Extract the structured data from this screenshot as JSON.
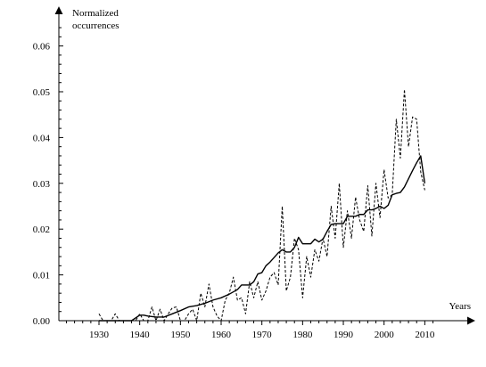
{
  "chart_data": {
    "type": "line",
    "ylabel": "Normalized\noccurrences",
    "ylabel_lines": [
      "Normalized",
      "occurrences"
    ],
    "xlabel": "Years",
    "xlim": [
      1920,
      2015
    ],
    "ylim": [
      0,
      0.065
    ],
    "x_ticks": [
      1930,
      1940,
      1950,
      1960,
      1970,
      1980,
      1990,
      2000,
      2010
    ],
    "y_ticks": [
      0.0,
      0.01,
      0.02,
      0.03,
      0.04,
      0.05,
      0.06
    ],
    "y_tick_labels": [
      "0.00",
      "0.01",
      "0.02",
      "0.03",
      "0.04",
      "0.05",
      "0.06"
    ],
    "grid": false,
    "series": [
      {
        "style": "solid",
        "color": "#000000",
        "x": [
          1930,
          1932,
          1934,
          1936,
          1938,
          1940,
          1941,
          1942,
          1944,
          1946,
          1948,
          1950,
          1952,
          1954,
          1956,
          1958,
          1960,
          1962,
          1964,
          1965,
          1966,
          1967,
          1968,
          1969,
          1970,
          1971,
          1972,
          1973,
          1974,
          1975,
          1976,
          1977,
          1978,
          1979,
          1980,
          1981,
          1982,
          1983,
          1984,
          1985,
          1986,
          1987,
          1988,
          1989,
          1990,
          1991,
          1992,
          1993,
          1994,
          1995,
          1996,
          1997,
          1998,
          1999,
          2000,
          2001,
          2002,
          2003,
          2004,
          2005,
          2006,
          2007,
          2008,
          2009,
          2010
        ],
        "y": [
          0.0,
          0.0,
          0.0,
          0.0,
          0.0,
          0.0012,
          0.0012,
          0.001,
          0.0008,
          0.0008,
          0.0015,
          0.0022,
          0.003,
          0.0033,
          0.0038,
          0.0045,
          0.005,
          0.0058,
          0.0068,
          0.0078,
          0.0078,
          0.0078,
          0.0085,
          0.0102,
          0.0105,
          0.012,
          0.0128,
          0.0138,
          0.0148,
          0.0155,
          0.015,
          0.015,
          0.016,
          0.0182,
          0.0168,
          0.0168,
          0.0168,
          0.0178,
          0.0172,
          0.0178,
          0.0195,
          0.021,
          0.0212,
          0.0212,
          0.0212,
          0.0228,
          0.0228,
          0.0228,
          0.0232,
          0.0232,
          0.0242,
          0.0242,
          0.0245,
          0.025,
          0.0245,
          0.0252,
          0.0275,
          0.0278,
          0.028,
          0.0292,
          0.031,
          0.0328,
          0.0345,
          0.036,
          0.03
        ]
      },
      {
        "style": "dashed",
        "color": "#000000",
        "x": [
          1930,
          1931,
          1932,
          1933,
          1934,
          1935,
          1936,
          1937,
          1938,
          1939,
          1940,
          1941,
          1942,
          1943,
          1944,
          1945,
          1946,
          1947,
          1948,
          1949,
          1950,
          1951,
          1952,
          1953,
          1954,
          1955,
          1956,
          1957,
          1958,
          1959,
          1960,
          1961,
          1962,
          1963,
          1964,
          1965,
          1966,
          1967,
          1968,
          1969,
          1970,
          1971,
          1972,
          1973,
          1974,
          1975,
          1976,
          1977,
          1978,
          1979,
          1980,
          1981,
          1982,
          1983,
          1984,
          1985,
          1986,
          1987,
          1988,
          1989,
          1990,
          1991,
          1992,
          1993,
          1994,
          1995,
          1996,
          1997,
          1998,
          1999,
          2000,
          2001,
          2002,
          2003,
          2004,
          2005,
          2006,
          2007,
          2008,
          2009,
          2010
        ],
        "y": [
          0.0015,
          0.0,
          0.0,
          0.0,
          0.0015,
          0.0,
          0.0,
          0.0,
          0.0,
          0.0,
          0.0015,
          0.0,
          0.0,
          0.003,
          0.0,
          0.0025,
          0.0,
          0.0015,
          0.0028,
          0.003,
          0.0,
          0.0,
          0.0015,
          0.0025,
          0.0,
          0.006,
          0.003,
          0.008,
          0.003,
          0.001,
          0.0,
          0.0045,
          0.006,
          0.0095,
          0.0045,
          0.005,
          0.0015,
          0.0085,
          0.005,
          0.0085,
          0.0045,
          0.0065,
          0.0095,
          0.0105,
          0.0078,
          0.025,
          0.0065,
          0.0095,
          0.018,
          0.0155,
          0.005,
          0.014,
          0.0095,
          0.0155,
          0.013,
          0.018,
          0.014,
          0.025,
          0.018,
          0.03,
          0.016,
          0.024,
          0.018,
          0.027,
          0.022,
          0.0195,
          0.0295,
          0.0185,
          0.03,
          0.0225,
          0.033,
          0.0268,
          0.0275,
          0.044,
          0.0355,
          0.0505,
          0.038,
          0.0445,
          0.044,
          0.0325,
          0.0285
        ]
      }
    ]
  }
}
